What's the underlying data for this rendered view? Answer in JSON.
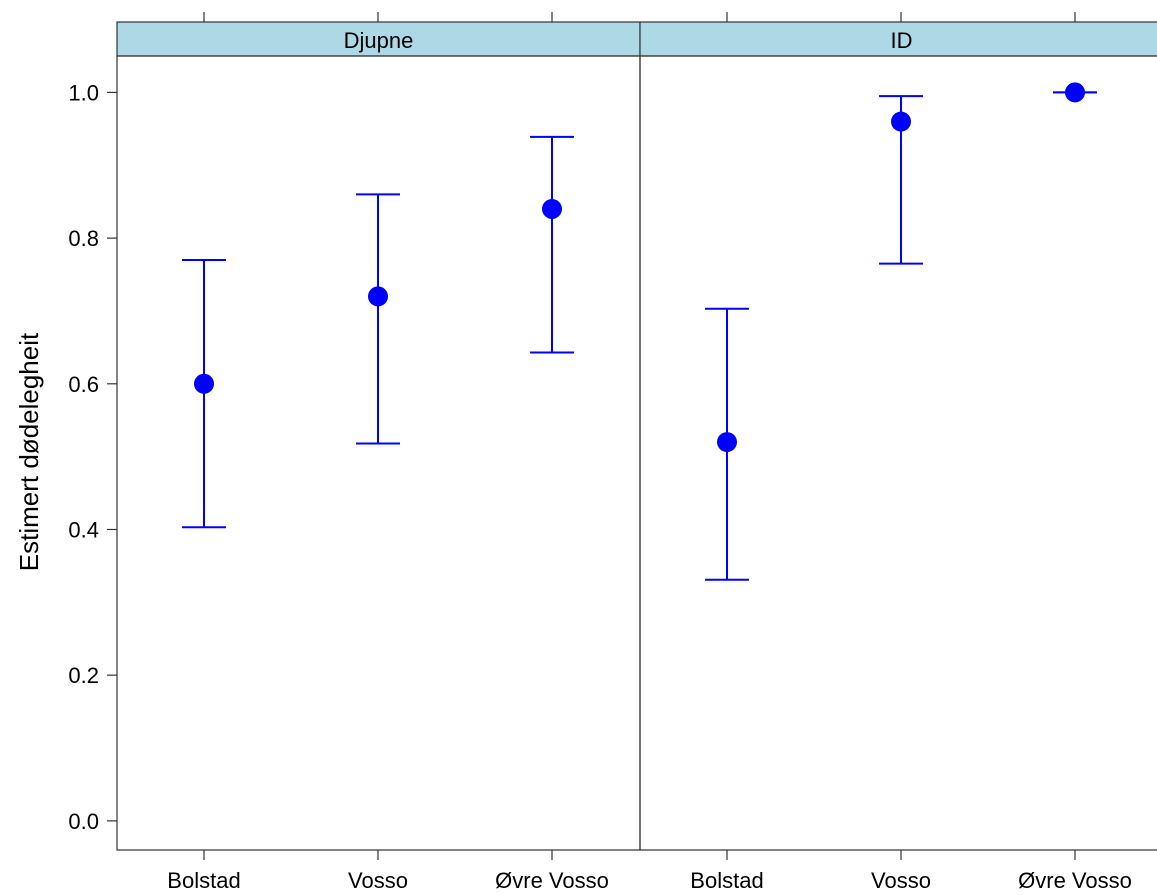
{
  "chart_data": {
    "type": "scatter",
    "ylabel": "Estimert dødelegheit",
    "ylim": [
      -0.04,
      1.05
    ],
    "yticks": [
      0.0,
      0.2,
      0.4,
      0.6,
      0.8,
      1.0
    ],
    "ytick_labels": [
      "0.0",
      "0.2",
      "0.4",
      "0.6",
      "0.8",
      "1.0"
    ],
    "strip_color": "#add8e6",
    "point_color": "#0000ff",
    "categories": [
      "Bolstad",
      "Vosso",
      "Øvre Vosso"
    ],
    "panels": [
      {
        "title": "Djupne",
        "estimate": [
          0.6,
          0.72,
          0.84
        ],
        "lower": [
          0.403,
          0.518,
          0.643
        ],
        "upper": [
          0.77,
          0.86,
          0.939
        ]
      },
      {
        "title": "ID",
        "estimate": [
          0.52,
          0.96,
          1.0
        ],
        "lower": [
          0.331,
          0.765,
          1.0
        ],
        "upper": [
          0.703,
          0.995,
          1.0
        ]
      }
    ]
  }
}
